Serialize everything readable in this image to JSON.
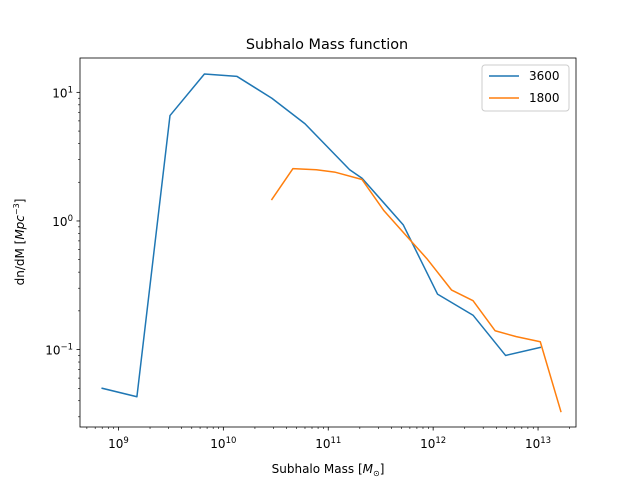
{
  "chart_data": {
    "type": "line",
    "title": "Subhalo Mass function",
    "xlabel": "Subhalo Mass [M⊙]",
    "ylabel": "dn/dM [Mpc⁻³]",
    "xscale": "log",
    "yscale": "log",
    "xlim": [
      430000000.0,
      23000000000000.0
    ],
    "ylim": [
      0.025,
      18.5
    ],
    "grid": false,
    "legend_position": "top-right",
    "x_ticks": [
      {
        "value": 1000000000.0,
        "base": "10",
        "exp": "9"
      },
      {
        "value": 10000000000.0,
        "base": "10",
        "exp": "10"
      },
      {
        "value": 100000000000.0,
        "base": "10",
        "exp": "11"
      },
      {
        "value": 1000000000000.0,
        "base": "10",
        "exp": "12"
      },
      {
        "value": 10000000000000.0,
        "base": "10",
        "exp": "13"
      }
    ],
    "y_ticks": [
      {
        "value": 0.1,
        "base": "10",
        "exp": "−1"
      },
      {
        "value": 1,
        "base": "10",
        "exp": "0"
      },
      {
        "value": 10,
        "base": "10",
        "exp": "1"
      }
    ],
    "series": [
      {
        "name": "3600",
        "color": "#1f77b4",
        "x": [
          700000000.0,
          1500000000.0,
          3100000000.0,
          6600000000.0,
          13500000000.0,
          29000000000.0,
          60000000000.0,
          160000000000.0,
          210000000000.0,
          520000000000.0,
          1100000000000.0,
          2400000000000.0,
          4900000000000.0,
          10500000000000.0
        ],
        "y": [
          0.05,
          0.043,
          6.6,
          13.9,
          13.3,
          9.0,
          5.7,
          2.5,
          2.15,
          0.93,
          0.27,
          0.185,
          0.09,
          0.104
        ]
      },
      {
        "name": "1800",
        "color": "#ff7f0e",
        "x": [
          29000000000.0,
          46000000000.0,
          77000000000.0,
          115000000000.0,
          210000000000.0,
          340000000000.0,
          560000000000.0,
          870000000000.0,
          1500000000000.0,
          2400000000000.0,
          3900000000000.0,
          6200000000000.0,
          10500000000000.0,
          16500000000000.0
        ],
        "y": [
          1.47,
          2.55,
          2.5,
          2.4,
          2.1,
          1.2,
          0.76,
          0.51,
          0.29,
          0.24,
          0.14,
          0.126,
          0.115,
          0.033
        ]
      }
    ]
  }
}
